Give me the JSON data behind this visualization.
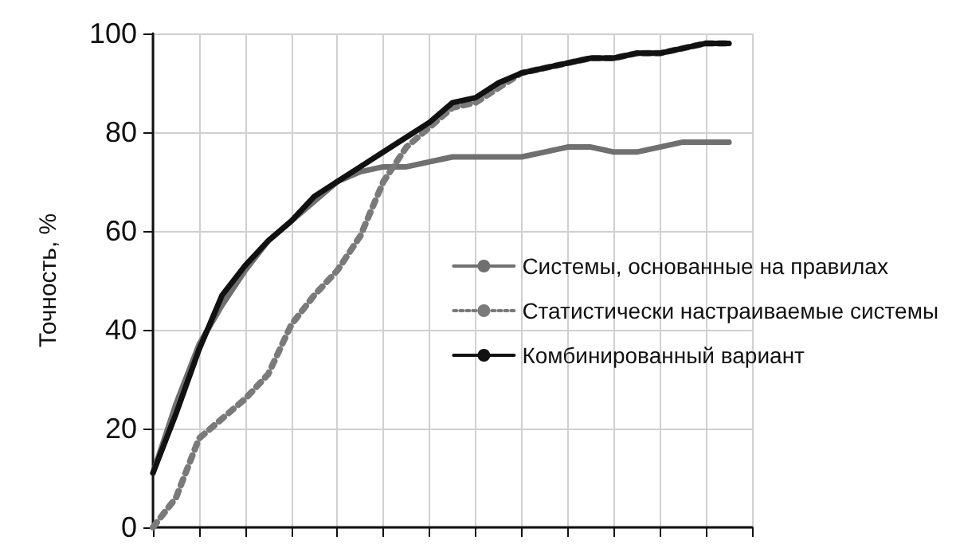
{
  "chart_data": {
    "type": "line",
    "ylabel": "Точность, %",
    "categories": [
      null,
      null,
      null,
      null,
      null,
      null,
      null,
      null,
      null,
      null,
      null,
      null,
      null,
      null,
      null,
      null,
      null,
      null,
      null,
      null,
      null,
      null,
      null,
      null,
      null,
      null,
      null
    ],
    "series": [
      {
        "name": "Системы, основанные на правилах",
        "color": "#707070",
        "line_style": "solid",
        "values": [
          11,
          25,
          37,
          45,
          52,
          58,
          62,
          66,
          70,
          72,
          73,
          73,
          74,
          75,
          75,
          75,
          75,
          76,
          77,
          77,
          76,
          76,
          77,
          78,
          78,
          78,
          null
        ]
      },
      {
        "name": "Статистически настраиваемые системы",
        "color": "#7a7a7a",
        "line_style": "dotted",
        "values": [
          0,
          6,
          18,
          22,
          26,
          31,
          41,
          47,
          52,
          59,
          70,
          77,
          81,
          85,
          86,
          89,
          92,
          93,
          94,
          95,
          95,
          96,
          96,
          97,
          98,
          98,
          null
        ]
      },
      {
        "name": "Комбинированный вариант",
        "color": "#111111",
        "line_style": "solid",
        "values": [
          11,
          23,
          36,
          47,
          53,
          58,
          62,
          67,
          70,
          73,
          76,
          79,
          82,
          86,
          87,
          90,
          92,
          93,
          94,
          95,
          95,
          96,
          96,
          97,
          98,
          98,
          null
        ]
      }
    ],
    "ylim": [
      0,
      100
    ],
    "yticks": [
      0,
      20,
      40,
      60,
      80,
      100
    ],
    "grid": true,
    "legend": "right",
    "marker": "none"
  }
}
